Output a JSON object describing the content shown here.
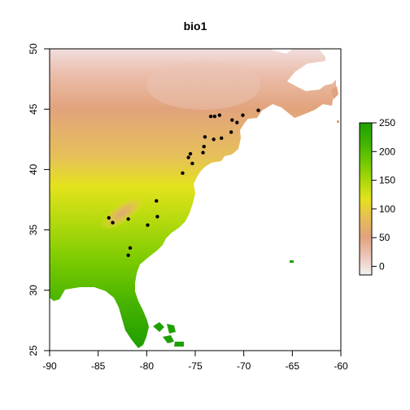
{
  "chart_data": {
    "type": "heatmap",
    "title": "bio1",
    "xlabel": "",
    "ylabel": "",
    "xlim": [
      -90,
      -60
    ],
    "ylim": [
      25,
      50
    ],
    "x_ticks": [
      -90,
      -85,
      -80,
      -75,
      -70,
      -65,
      -60
    ],
    "y_ticks": [
      25,
      30,
      35,
      40,
      45,
      50
    ],
    "colorbar": {
      "range": [
        -15,
        250
      ],
      "ticks": [
        0,
        50,
        100,
        150,
        200,
        250
      ],
      "colors": [
        "#f2f2f2",
        "#ecc5b8",
        "#e1a27e",
        "#e7bd57",
        "#e3e21c",
        "#a8d80a",
        "#6fc700",
        "#3fb300",
        "#1fa000"
      ]
    },
    "points_color": "#000000",
    "points": [
      {
        "x": -68.5,
        "y": 44.9
      },
      {
        "x": -70.1,
        "y": 44.5
      },
      {
        "x": -70.7,
        "y": 43.9
      },
      {
        "x": -71.2,
        "y": 44.1
      },
      {
        "x": -71.3,
        "y": 43.1
      },
      {
        "x": -72.5,
        "y": 44.5
      },
      {
        "x": -73.0,
        "y": 44.4
      },
      {
        "x": -73.4,
        "y": 44.4
      },
      {
        "x": -72.3,
        "y": 42.6
      },
      {
        "x": -73.1,
        "y": 42.5
      },
      {
        "x": -74.0,
        "y": 42.7
      },
      {
        "x": -74.1,
        "y": 41.9
      },
      {
        "x": -74.2,
        "y": 41.4
      },
      {
        "x": -75.5,
        "y": 41.3
      },
      {
        "x": -75.7,
        "y": 41.0
      },
      {
        "x": -75.3,
        "y": 40.5
      },
      {
        "x": -76.3,
        "y": 39.7
      },
      {
        "x": -79.0,
        "y": 37.4
      },
      {
        "x": -78.9,
        "y": 36.1
      },
      {
        "x": -79.9,
        "y": 35.4
      },
      {
        "x": -81.9,
        "y": 35.9
      },
      {
        "x": -83.9,
        "y": 36.0
      },
      {
        "x": -83.5,
        "y": 35.6
      },
      {
        "x": -81.7,
        "y": 33.5
      },
      {
        "x": -81.9,
        "y": 32.9
      }
    ]
  }
}
